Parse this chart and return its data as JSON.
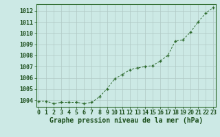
{
  "x": [
    0,
    1,
    2,
    3,
    4,
    5,
    6,
    7,
    8,
    9,
    10,
    11,
    12,
    13,
    14,
    15,
    16,
    17,
    18,
    19,
    20,
    21,
    22,
    23
  ],
  "y": [
    1003.9,
    1003.9,
    1003.7,
    1003.8,
    1003.8,
    1003.8,
    1003.7,
    1003.8,
    1004.3,
    1005.0,
    1005.9,
    1006.3,
    1006.7,
    1006.9,
    1007.0,
    1007.1,
    1007.5,
    1008.0,
    1009.3,
    1009.4,
    1010.1,
    1011.0,
    1011.8,
    1012.3
  ],
  "line_color": "#2d6a2d",
  "marker": "+",
  "marker_color": "#2d6a2d",
  "bg_color": "#cce9e5",
  "grid_color": "#b0c8c4",
  "axis_label_color": "#1a4d1a",
  "tick_color": "#1a4d1a",
  "xlabel": "Graphe pression niveau de la mer (hPa)",
  "ylim": [
    1003.4,
    1012.6
  ],
  "yticks": [
    1004,
    1005,
    1006,
    1007,
    1008,
    1009,
    1010,
    1011,
    1012
  ],
  "xticks": [
    0,
    1,
    2,
    3,
    4,
    5,
    6,
    7,
    8,
    9,
    10,
    11,
    12,
    13,
    14,
    15,
    16,
    17,
    18,
    19,
    20,
    21,
    22,
    23
  ],
  "tick_fontsize": 6,
  "xlabel_fontsize": 7
}
